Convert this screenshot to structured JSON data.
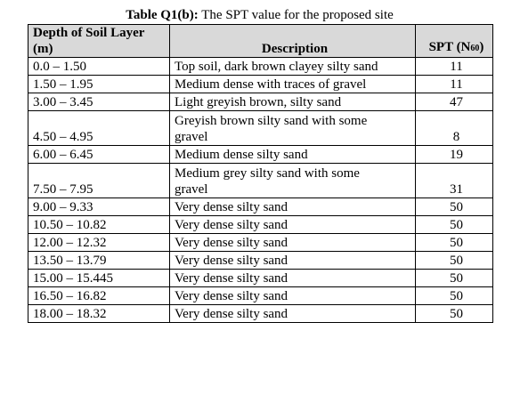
{
  "caption": {
    "label": "Table Q1(b):",
    "text": "The SPT value for the proposed site"
  },
  "headers": {
    "depth_line1": "Depth of Soil Layer",
    "depth_line2": "(m)",
    "description": "Description",
    "spt_main": "SPT (N",
    "spt_sub": "60",
    "spt_close": ")"
  },
  "rows": [
    {
      "depth": "0.0 – 1.50",
      "description_lines": [
        "Top soil, dark brown clayey silty sand"
      ],
      "spt": "11"
    },
    {
      "depth": "1.50 – 1.95",
      "description_lines": [
        "Medium dense with traces of gravel"
      ],
      "spt": "11"
    },
    {
      "depth": "3.00 – 3.45",
      "description_lines": [
        "Light greyish brown, silty sand"
      ],
      "spt": "47"
    },
    {
      "depth": "4.50 – 4.95",
      "description_lines": [
        "Greyish brown silty sand with some",
        "gravel"
      ],
      "spt": "8"
    },
    {
      "depth": "6.00 – 6.45",
      "description_lines": [
        "Medium dense silty sand"
      ],
      "spt": "19"
    },
    {
      "depth": "7.50 – 7.95",
      "description_lines": [
        "Medium grey silty sand with some",
        "gravel"
      ],
      "spt": "31"
    },
    {
      "depth": "9.00 – 9.33",
      "description_lines": [
        "Very dense silty sand"
      ],
      "spt": "50"
    },
    {
      "depth": "10.50 – 10.82",
      "description_lines": [
        "Very dense silty sand"
      ],
      "spt": "50"
    },
    {
      "depth": "12.00 – 12.32",
      "description_lines": [
        "Very dense silty sand"
      ],
      "spt": "50"
    },
    {
      "depth": "13.50 – 13.79",
      "description_lines": [
        "Very dense silty sand"
      ],
      "spt": "50"
    },
    {
      "depth": "15.00 – 15.445",
      "description_lines": [
        "Very dense silty sand"
      ],
      "spt": "50"
    },
    {
      "depth": "16.50 – 16.82",
      "description_lines": [
        "Very dense silty sand"
      ],
      "spt": "50"
    },
    {
      "depth": "18.00 – 18.32",
      "description_lines": [
        "Very dense silty sand"
      ],
      "spt": "50"
    }
  ]
}
